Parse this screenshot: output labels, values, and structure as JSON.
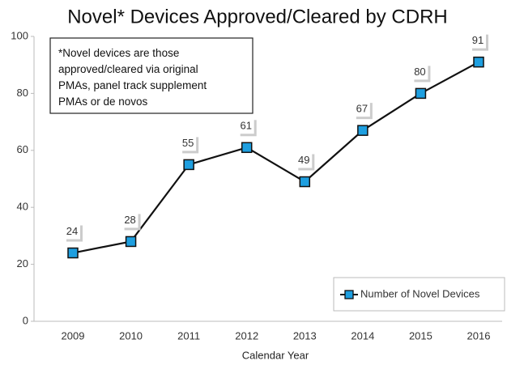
{
  "chart_data": {
    "type": "line",
    "title": "Novel* Devices Approved/Cleared by CDRH",
    "annotation": [
      "*Novel devices are those",
      "approved/cleared via original",
      "PMAs, panel track supplement",
      "PMAs or de novos"
    ],
    "x_label": "Calendar Year",
    "categories": [
      "2009",
      "2010",
      "2011",
      "2012",
      "2013",
      "2014",
      "2015",
      "2016"
    ],
    "series": [
      {
        "name": "Number of Novel Devices",
        "color": "#1e9fe0",
        "values": [
          24,
          28,
          55,
          61,
          49,
          67,
          80,
          91
        ]
      }
    ],
    "ylim": [
      0,
      100
    ],
    "yticks": [
      0,
      20,
      40,
      60,
      80,
      100
    ],
    "legend": "lower right"
  }
}
